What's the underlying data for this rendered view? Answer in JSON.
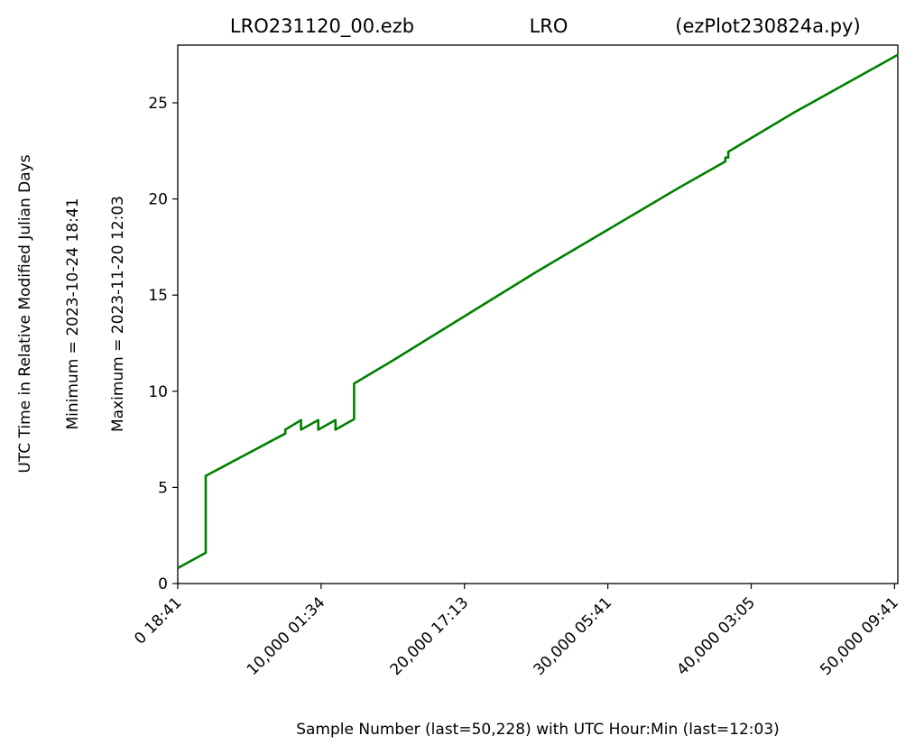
{
  "chart_data": {
    "type": "line",
    "title_parts": [
      "LRO231120_00.ezb",
      "LRO",
      "(ezPlot230824a.py)"
    ],
    "xlabel": "Sample Number (last=50,228) with UTC Hour:Min (last=12:03)",
    "ylabel_lines": [
      "UTC Time in Relative Modified Julian Days",
      "Minimum = 2023-10-24   18:41",
      "Maximum = 2023-11-20   12:03"
    ],
    "xlim": [
      0,
      50228
    ],
    "ylim": [
      0,
      28
    ],
    "x_ticks": [
      {
        "value": 0,
        "label": "0  18:41"
      },
      {
        "value": 10000,
        "label": "10,000  01:34"
      },
      {
        "value": 20000,
        "label": "20,000  17:13"
      },
      {
        "value": 30000,
        "label": "30,000  05:41"
      },
      {
        "value": 40000,
        "label": "40,000  03:05"
      },
      {
        "value": 50000,
        "label": "50,000  09:41"
      }
    ],
    "y_ticks": [
      {
        "value": 0,
        "label": "0"
      },
      {
        "value": 5,
        "label": "5"
      },
      {
        "value": 10,
        "label": "10"
      },
      {
        "value": 15,
        "label": "15"
      },
      {
        "value": 20,
        "label": "20"
      },
      {
        "value": 25,
        "label": "25"
      }
    ],
    "grid": false,
    "series": [
      {
        "color": "#008000",
        "x": [
          0,
          1950,
          1951,
          7500,
          7501,
          8600,
          8601,
          9800,
          9801,
          11000,
          11001,
          12300,
          12301,
          15000,
          20000,
          25000,
          30000,
          35000,
          38200,
          38201,
          38400,
          38401,
          43000,
          50228
        ],
        "y": [
          0.8,
          1.6,
          5.6,
          7.8,
          8.0,
          8.5,
          8.0,
          8.5,
          8.0,
          8.5,
          8.0,
          8.55,
          10.4,
          11.6,
          13.9,
          16.2,
          18.4,
          20.6,
          21.95,
          22.15,
          22.15,
          22.45,
          24.5,
          27.5
        ]
      }
    ]
  }
}
